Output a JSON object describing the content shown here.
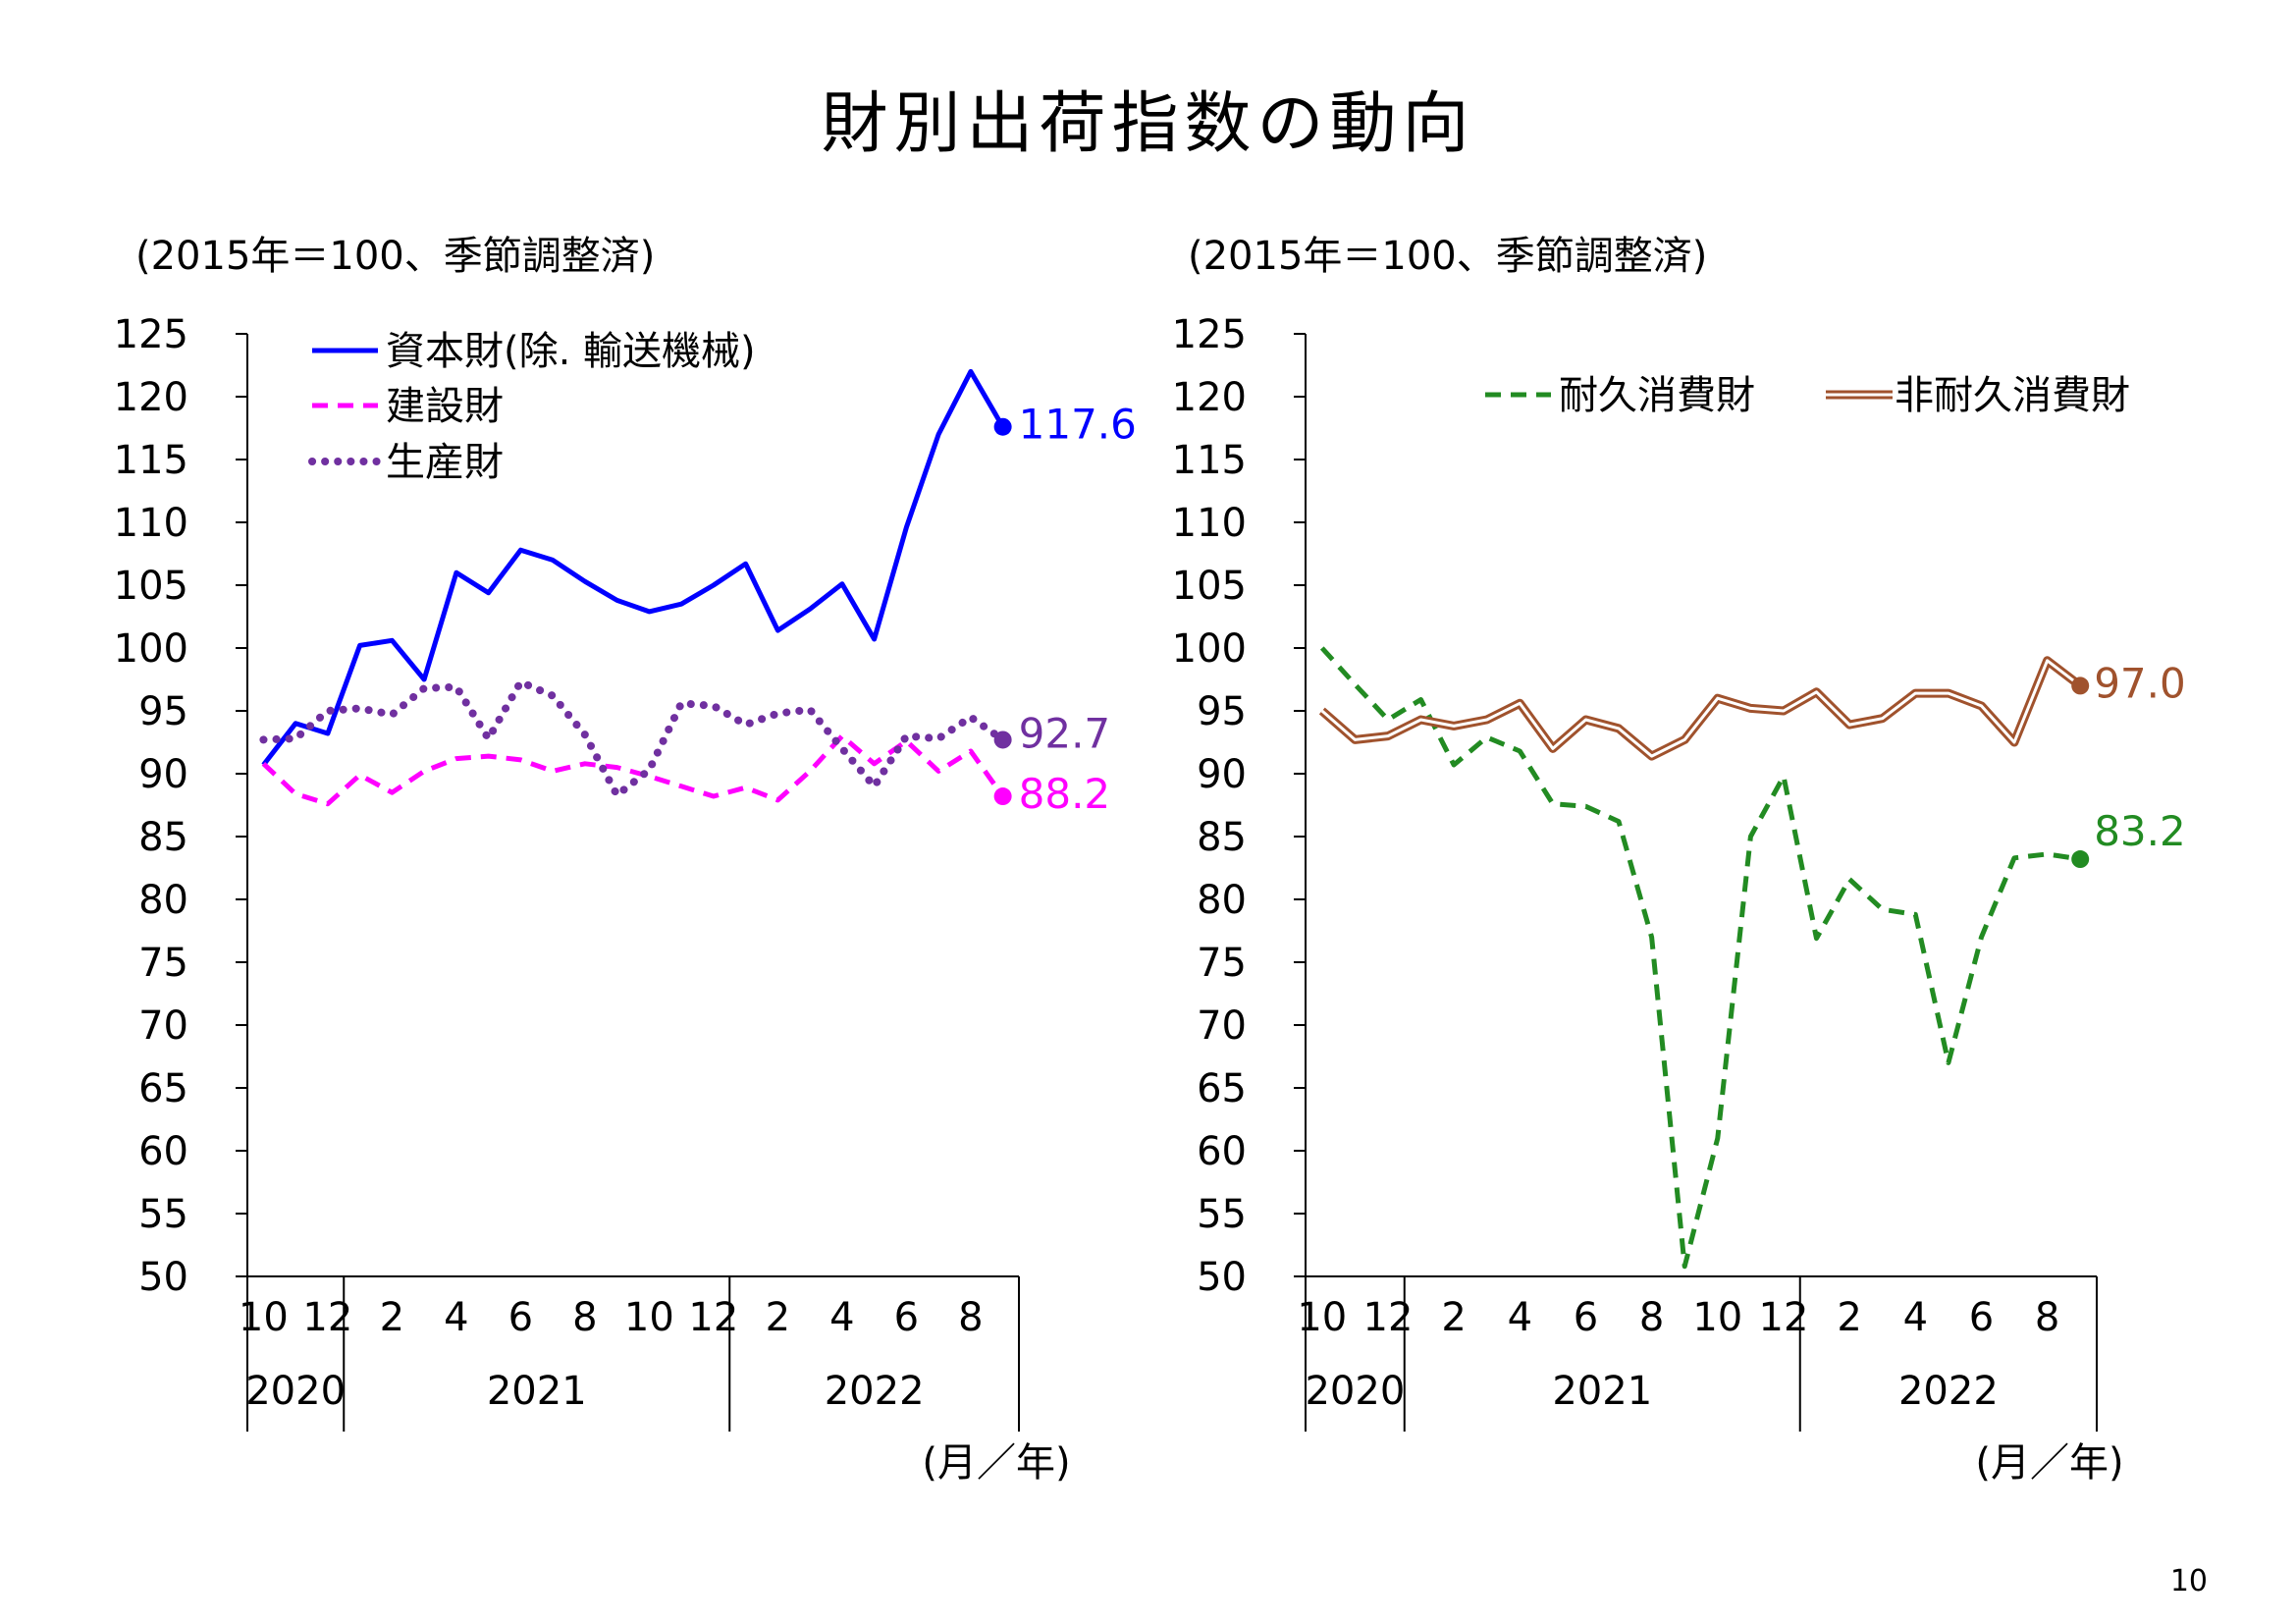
{
  "page": {
    "title": "財別出荷指数の動向",
    "page_number": "10"
  },
  "chart_data": [
    {
      "type": "line",
      "title": "",
      "unit_note": "(2015年＝100、季節調整済)",
      "xlabel": "(月／年)",
      "ylabel": "",
      "ylim": [
        50,
        125
      ],
      "yticks": [
        "125",
        "120",
        "115",
        "110",
        "105",
        "100",
        "95",
        "90",
        "85",
        "80",
        "75",
        "70",
        "65",
        "60",
        "55",
        "50"
      ],
      "grid": false,
      "legend_position": "top-left",
      "x": [
        "2020-10",
        "2020-11",
        "2020-12",
        "2021-01",
        "2021-02",
        "2021-03",
        "2021-04",
        "2021-05",
        "2021-06",
        "2021-07",
        "2021-08",
        "2021-09",
        "2021-10",
        "2021-11",
        "2021-12",
        "2022-01",
        "2022-02",
        "2022-03",
        "2022-04",
        "2022-05",
        "2022-06",
        "2022-07",
        "2022-08",
        "2022-09"
      ],
      "month_tick_labels": [
        "10",
        "12",
        "2",
        "4",
        "6",
        "8",
        "10",
        "12",
        "2",
        "4",
        "6",
        "8"
      ],
      "year_labels": [
        "2020",
        "2021",
        "2022"
      ],
      "series": [
        {
          "name": "資本財(除. 輸送機械)",
          "color": "#0000ff",
          "style": "solid",
          "end_label": "117.6",
          "values": [
            90.7,
            94.0,
            93.2,
            100.2,
            100.6,
            97.5,
            106.0,
            104.4,
            107.8,
            107.0,
            105.3,
            103.8,
            102.9,
            103.5,
            105.0,
            106.7,
            101.4,
            103.1,
            105.1,
            100.7,
            109.6,
            117.0,
            122.0,
            117.6
          ]
        },
        {
          "name": "建設財",
          "color": "#ff00ff",
          "style": "dashed",
          "end_label": "88.2",
          "values": [
            90.8,
            88.4,
            87.6,
            89.9,
            88.5,
            90.2,
            91.2,
            91.4,
            91.1,
            90.2,
            90.8,
            90.5,
            89.8,
            89.0,
            88.2,
            88.9,
            87.9,
            90.2,
            93.0,
            90.8,
            92.6,
            90.2,
            91.8,
            88.2
          ]
        },
        {
          "name": "生産財",
          "color": "#7030a0",
          "style": "dotted",
          "end_label": "92.7",
          "values": [
            92.7,
            92.8,
            95.0,
            95.2,
            94.7,
            96.8,
            96.9,
            92.8,
            97.3,
            96.2,
            93.1,
            88.3,
            90.3,
            95.6,
            95.4,
            93.9,
            94.8,
            95.1,
            92.0,
            89.0,
            93.0,
            92.8,
            94.5,
            92.7
          ]
        }
      ]
    },
    {
      "type": "line",
      "title": "",
      "unit_note": "(2015年＝100、季節調整済)",
      "xlabel": "(月／年)",
      "ylabel": "",
      "ylim": [
        50,
        125
      ],
      "yticks": [
        "125",
        "120",
        "115",
        "110",
        "105",
        "100",
        "95",
        "90",
        "85",
        "80",
        "75",
        "70",
        "65",
        "60",
        "55",
        "50"
      ],
      "grid": false,
      "legend_position": "top-right",
      "x": [
        "2020-10",
        "2020-11",
        "2020-12",
        "2021-01",
        "2021-02",
        "2021-03",
        "2021-04",
        "2021-05",
        "2021-06",
        "2021-07",
        "2021-08",
        "2021-09",
        "2021-10",
        "2021-11",
        "2021-12",
        "2022-01",
        "2022-02",
        "2022-03",
        "2022-04",
        "2022-05",
        "2022-06",
        "2022-07",
        "2022-08",
        "2022-09"
      ],
      "month_tick_labels": [
        "10",
        "12",
        "2",
        "4",
        "6",
        "8",
        "10",
        "12",
        "2",
        "4",
        "6",
        "8"
      ],
      "year_labels": [
        "2020",
        "2021",
        "2022"
      ],
      "series": [
        {
          "name": "耐久消費財",
          "color": "#228b22",
          "style": "dashed",
          "end_label": "83.2",
          "values": [
            100.0,
            97.1,
            94.3,
            95.9,
            90.7,
            92.9,
            91.8,
            87.6,
            87.4,
            86.2,
            77.0,
            50.8,
            61.0,
            85.0,
            89.8,
            76.9,
            81.6,
            79.2,
            78.8,
            67.0,
            77.0,
            83.3,
            83.6,
            83.2
          ]
        },
        {
          "name": "非耐久消費財",
          "color": "#a0522d",
          "style": "double",
          "end_label": "97.0",
          "values": [
            95.0,
            92.7,
            93.0,
            94.3,
            93.8,
            94.3,
            95.6,
            92.0,
            94.3,
            93.6,
            91.4,
            92.7,
            96.0,
            95.2,
            95.0,
            96.5,
            93.9,
            94.4,
            96.4,
            96.4,
            95.4,
            92.5,
            99.0,
            97.0
          ]
        }
      ]
    }
  ]
}
